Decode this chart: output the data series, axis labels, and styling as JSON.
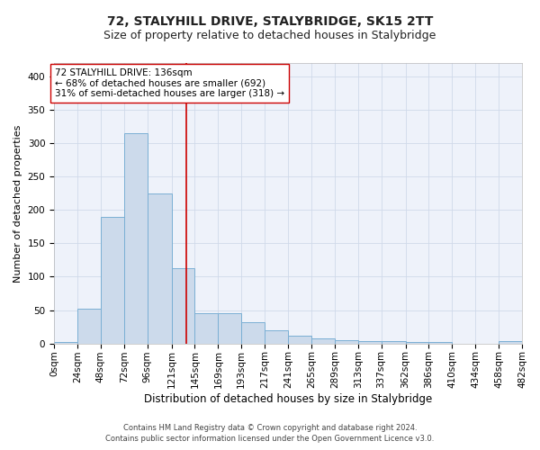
{
  "title_line1": "72, STALYHILL DRIVE, STALYBRIDGE, SK15 2TT",
  "title_line2": "Size of property relative to detached houses in Stalybridge",
  "xlabel": "Distribution of detached houses by size in Stalybridge",
  "ylabel": "Number of detached properties",
  "footnote1": "Contains HM Land Registry data © Crown copyright and database right 2024.",
  "footnote2": "Contains public sector information licensed under the Open Government Licence v3.0.",
  "bar_left_edges": [
    0,
    24,
    48,
    72,
    96,
    121,
    145,
    169,
    193,
    217,
    241,
    265,
    289,
    313,
    337,
    362,
    386,
    410,
    434,
    458
  ],
  "bar_widths": [
    24,
    24,
    24,
    24,
    25,
    24,
    24,
    24,
    24,
    24,
    24,
    24,
    24,
    24,
    25,
    24,
    24,
    24,
    24,
    24
  ],
  "bar_heights": [
    2,
    52,
    190,
    315,
    225,
    113,
    45,
    45,
    32,
    20,
    12,
    8,
    5,
    4,
    3,
    2,
    2,
    0,
    0,
    4
  ],
  "bar_color": "#ccdaeb",
  "bar_edge_color": "#7aafd4",
  "bar_edge_width": 0.7,
  "property_size": 136,
  "red_line_color": "#cc0000",
  "annotation_text1": "72 STALYHILL DRIVE: 136sqm",
  "annotation_text2": "← 68% of detached houses are smaller (692)",
  "annotation_text3": "31% of semi-detached houses are larger (318) →",
  "annotation_box_color": "#ffffff",
  "annotation_box_edge": "#cc0000",
  "annotation_fontsize": 7.5,
  "ylim": [
    0,
    420
  ],
  "xlim": [
    0,
    482
  ],
  "yticks": [
    0,
    50,
    100,
    150,
    200,
    250,
    300,
    350,
    400
  ],
  "xtick_labels": [
    "0sqm",
    "24sqm",
    "48sqm",
    "72sqm",
    "96sqm",
    "121sqm",
    "145sqm",
    "169sqm",
    "193sqm",
    "217sqm",
    "241sqm",
    "265sqm",
    "289sqm",
    "313sqm",
    "337sqm",
    "362sqm",
    "386sqm",
    "410sqm",
    "434sqm",
    "458sqm",
    "482sqm"
  ],
  "xtick_positions": [
    0,
    24,
    48,
    72,
    96,
    121,
    145,
    169,
    193,
    217,
    241,
    265,
    289,
    313,
    337,
    362,
    386,
    410,
    434,
    458,
    482
  ],
  "grid_color": "#d0d9ea",
  "background_color": "#eef2fa",
  "title_fontsize": 10,
  "subtitle_fontsize": 9,
  "ylabel_fontsize": 8,
  "xlabel_fontsize": 8.5,
  "tick_fontsize": 7.5,
  "footnote_fontsize": 6
}
